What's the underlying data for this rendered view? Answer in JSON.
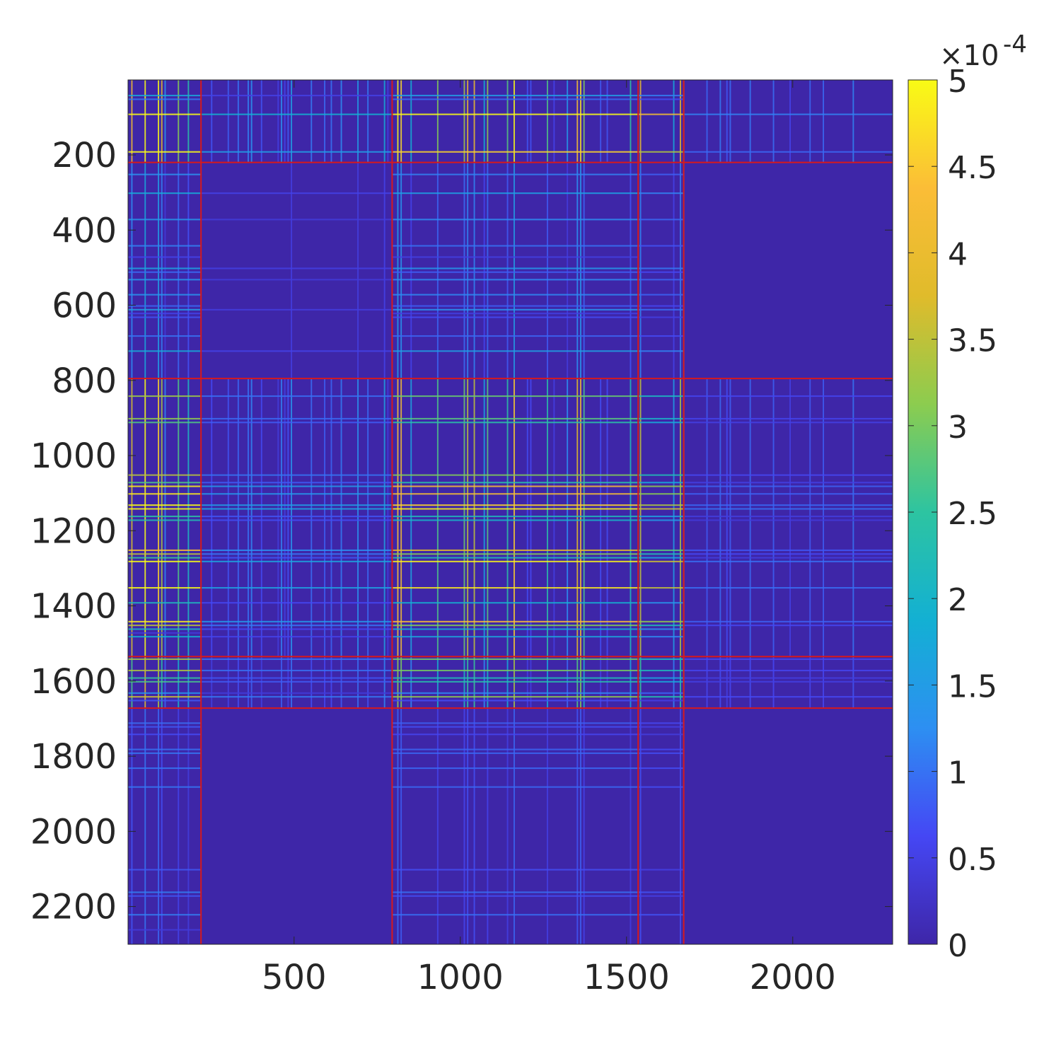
{
  "chart_data": {
    "type": "heatmap",
    "title": "",
    "xlabel": "",
    "ylabel": "",
    "matrix_size": 2300,
    "xlim": [
      1,
      2300
    ],
    "ylim": [
      1,
      2300
    ],
    "y_direction": "reversed",
    "x_ticks": [
      500,
      1000,
      1500,
      2000
    ],
    "x_tick_labels": [
      "500",
      "1000",
      "1500",
      "2000"
    ],
    "y_ticks": [
      200,
      400,
      600,
      800,
      1000,
      1200,
      1400,
      1600,
      1800,
      2000,
      2200
    ],
    "y_tick_labels": [
      "200",
      "400",
      "600",
      "800",
      "1000",
      "1200",
      "1400",
      "1600",
      "1800",
      "2000",
      "2200"
    ],
    "colorbar": {
      "clim": [
        0,
        5
      ],
      "multiplier_base": "×10",
      "multiplier_exponent": "-4",
      "ticks": [
        0,
        0.5,
        1,
        1.5,
        2,
        2.5,
        3,
        3.5,
        4,
        4.5,
        5
      ],
      "tick_labels": [
        "0",
        "0.5",
        "1",
        "1.5",
        "2",
        "2.5",
        "3",
        "3.5",
        "4",
        "4.5",
        "5"
      ],
      "colormap": "parula",
      "colormap_stops": [
        "#3e26a8",
        "#4547f4",
        "#2d8ff2",
        "#13b0d3",
        "#2dc4a1",
        "#8ccc4f",
        "#e0bb2b",
        "#fbbd37",
        "#f9fb15"
      ]
    },
    "block_boundaries": [
      220,
      795,
      1535,
      1672
    ],
    "boundary_color": "#d7191c",
    "grid": false,
    "legend": "none"
  }
}
